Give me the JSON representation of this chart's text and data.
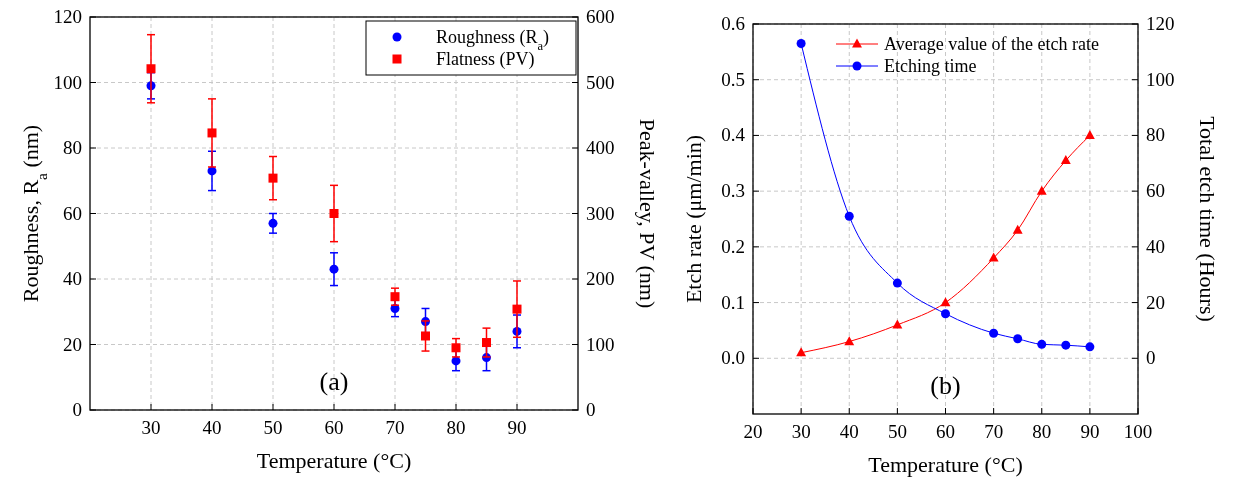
{
  "chart_data": [
    {
      "type": "scatter",
      "annotations": [
        "(a)"
      ],
      "xlabel": "Temperature (°C)",
      "ylabel": "Roughness, R$_{a}$ (nm)",
      "y2label": "Peak-valley, PV (nm)",
      "x": [
        30,
        40,
        50,
        60,
        70,
        75,
        80,
        85,
        90
      ],
      "xlim": [
        20,
        100
      ],
      "xticks": [
        30,
        40,
        50,
        60,
        70,
        80,
        90
      ],
      "ylim": [
        0,
        120
      ],
      "yticks": [
        0,
        20,
        40,
        60,
        80,
        100,
        120
      ],
      "y2lim": [
        0,
        600
      ],
      "y2ticks": [
        0,
        100,
        200,
        300,
        400,
        500,
        600
      ],
      "grid": true,
      "legend": "top right",
      "series": [
        {
          "name": "Roughness (R$_{a}$)",
          "color": "#0000ff",
          "marker": "circle",
          "values": [
            99,
            73,
            57,
            43,
            31,
            27,
            15,
            16,
            24
          ],
          "errors": [
            4,
            6,
            3,
            5,
            2.5,
            4,
            3,
            4,
            5
          ]
        },
        {
          "name": "Flatness (PV)",
          "color": "#ff0000",
          "marker": "square",
          "axis": "y2",
          "values": [
            521,
            423,
            354,
            300,
            173,
            113,
            95,
            103,
            154
          ],
          "errors": [
            52,
            52,
            33,
            43,
            13,
            23,
            14,
            22,
            43
          ]
        }
      ]
    },
    {
      "type": "line",
      "annotations": [
        "(b)"
      ],
      "xlabel": "Temperature (°C)",
      "ylabel": "Etch rate (μm/min)",
      "y2label": "Total etch time (Hours)",
      "x": [
        30,
        40,
        50,
        60,
        70,
        75,
        80,
        85,
        90
      ],
      "xlim": [
        20,
        100
      ],
      "xticks": [
        20,
        30,
        40,
        50,
        60,
        70,
        80,
        90,
        100
      ],
      "ylim": [
        -0.1,
        0.6
      ],
      "yticks": [
        {
          "value": 0,
          "label": "0.0"
        },
        0.1,
        0.2,
        0.3,
        0.4,
        0.5,
        0.6
      ],
      "y2lim": [
        -20,
        120
      ],
      "y2ticks": [
        0,
        20,
        40,
        60,
        80,
        100,
        120
      ],
      "grid": true,
      "legend": "top right",
      "series": [
        {
          "name": "Average value of the etch rate",
          "color": "#ff0000",
          "marker": "triangle",
          "values": [
            0.01,
            0.03,
            0.06,
            0.1,
            0.18,
            0.23,
            0.3,
            0.355,
            0.4
          ]
        },
        {
          "name": "Etching time",
          "color": "#0000ff",
          "marker": "circle",
          "axis": "y2",
          "values": [
            113,
            51,
            27,
            16,
            9,
            7,
            5,
            4.7,
            4.1
          ]
        }
      ]
    }
  ]
}
